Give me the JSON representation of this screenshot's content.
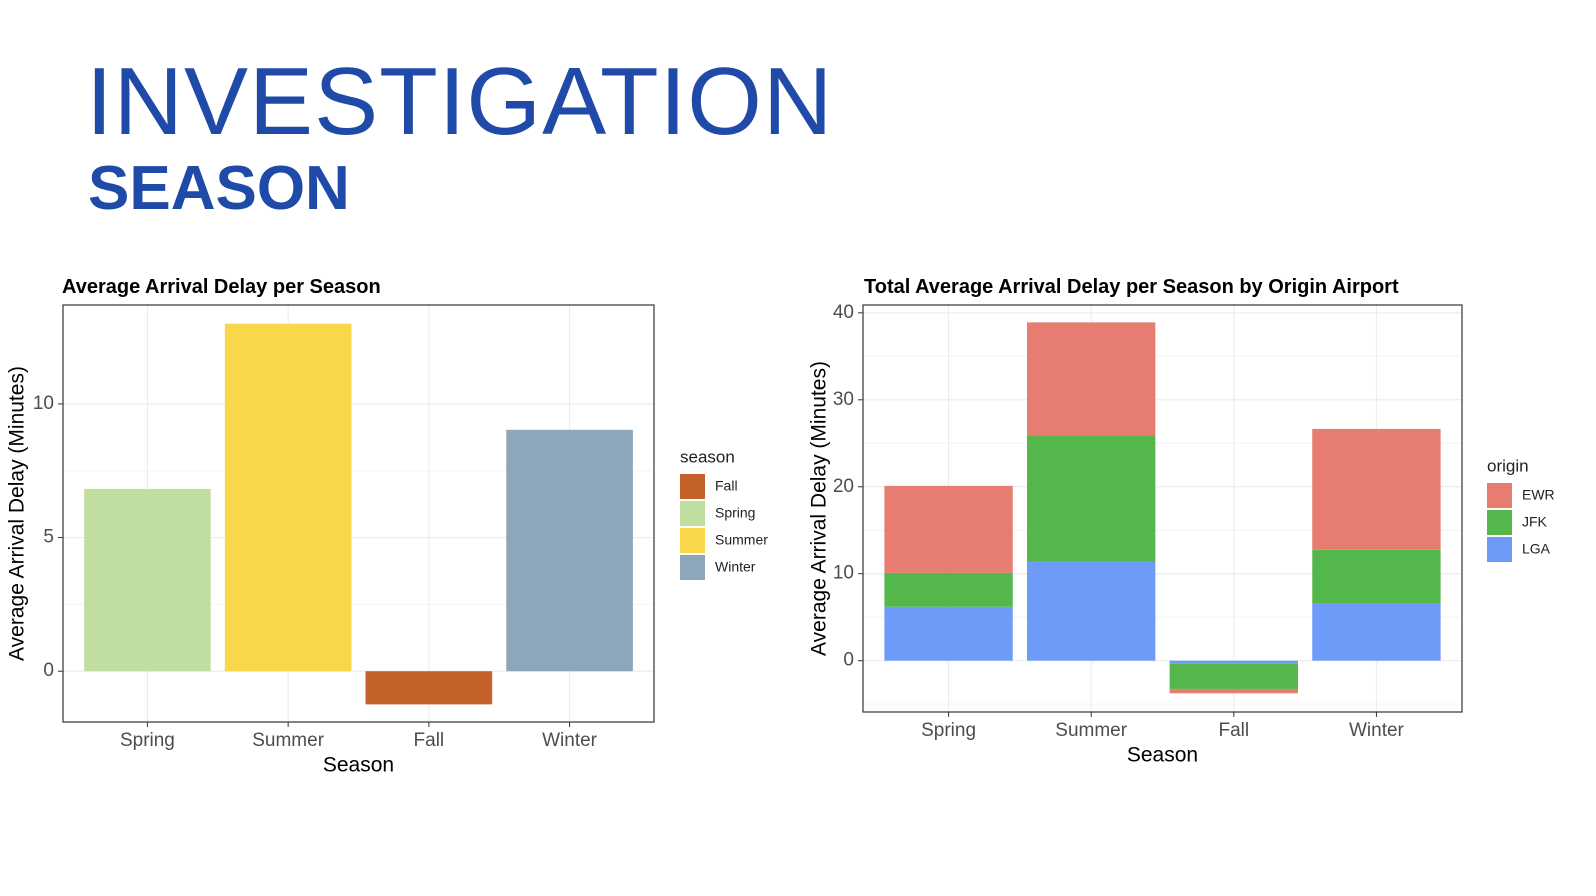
{
  "header": {
    "title": "INVESTIGATION",
    "subtitle": "SEASON"
  },
  "chart_data": [
    {
      "type": "bar",
      "title": "Average Arrival Delay per Season",
      "x_label": "Season",
      "y_label": "Average Arrival Delay (Minutes)",
      "categories": [
        "Spring",
        "Summer",
        "Fall",
        "Winter"
      ],
      "values": [
        6.82,
        13.0,
        -1.24,
        9.03
      ],
      "colors": [
        "#c0dea0",
        "#f8d74a",
        "#c4622a",
        "#8ea6ba"
      ],
      "ylim": [
        -1.9,
        13.7
      ],
      "yticks": [
        0,
        5,
        10
      ],
      "grid": true,
      "legend": {
        "title": "season",
        "position": "right",
        "entries": [
          {
            "name": "Fall",
            "color": "#c4622a"
          },
          {
            "name": "Spring",
            "color": "#c0dea0"
          },
          {
            "name": "Summer",
            "color": "#f8d74a"
          },
          {
            "name": "Winter",
            "color": "#8ea6ba"
          }
        ]
      }
    },
    {
      "type": "stacked_bar",
      "title": "Total Average Arrival Delay per Season by Origin Airport",
      "x_label": "Season",
      "y_label": "Average Arrival Delay (Minutes)",
      "categories": [
        "Spring",
        "Summer",
        "Fall",
        "Winter"
      ],
      "legend_title": "origin",
      "legend_position": "right",
      "series": [
        {
          "name": "EWR",
          "color": "#e77c70",
          "values": [
            10.0,
            13.0,
            -0.5,
            13.9
          ]
        },
        {
          "name": "JFK",
          "color": "#54b74b",
          "values": [
            3.9,
            14.5,
            -2.9,
            6.2
          ]
        },
        {
          "name": "LGA",
          "color": "#6e9bf7",
          "values": [
            6.2,
            11.4,
            -0.35,
            6.55
          ]
        }
      ],
      "ylim": [
        -5.9,
        40.9
      ],
      "yticks": [
        0,
        10,
        20,
        30,
        40
      ],
      "grid": true
    }
  ]
}
